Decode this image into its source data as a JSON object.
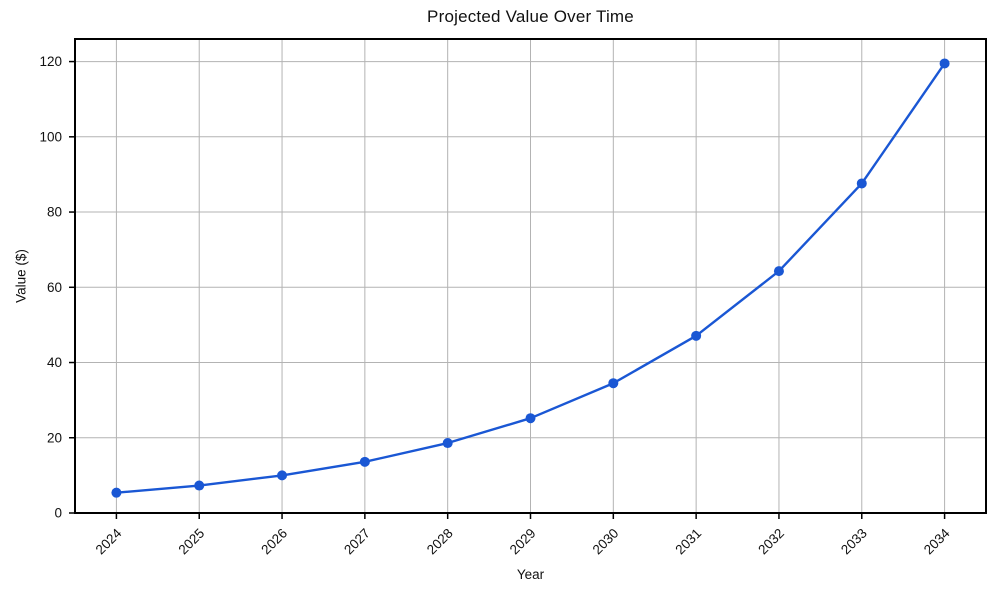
{
  "chart_data": {
    "type": "line",
    "title": "Projected Value Over Time",
    "xlabel": "Year",
    "ylabel": "Value ($)",
    "x": [
      2024,
      2025,
      2026,
      2027,
      2028,
      2029,
      2030,
      2031,
      2032,
      2033,
      2034
    ],
    "values": [
      5.4,
      7.3,
      10.0,
      13.6,
      18.6,
      25.2,
      34.5,
      47.1,
      64.3,
      87.6,
      119.5
    ],
    "yticks": [
      0,
      20,
      40,
      60,
      80,
      100,
      120
    ],
    "xlim": [
      2023.5,
      2034.5
    ],
    "ylim": [
      0,
      126
    ],
    "grid": true,
    "legend": false,
    "x_tick_rotation": 45,
    "colors": {
      "line": "#1a57d4",
      "marker": "#1a57d4",
      "grid": "#b3b3b3",
      "spine": "#000000",
      "text": "#111111",
      "background": "#ffffff"
    }
  }
}
